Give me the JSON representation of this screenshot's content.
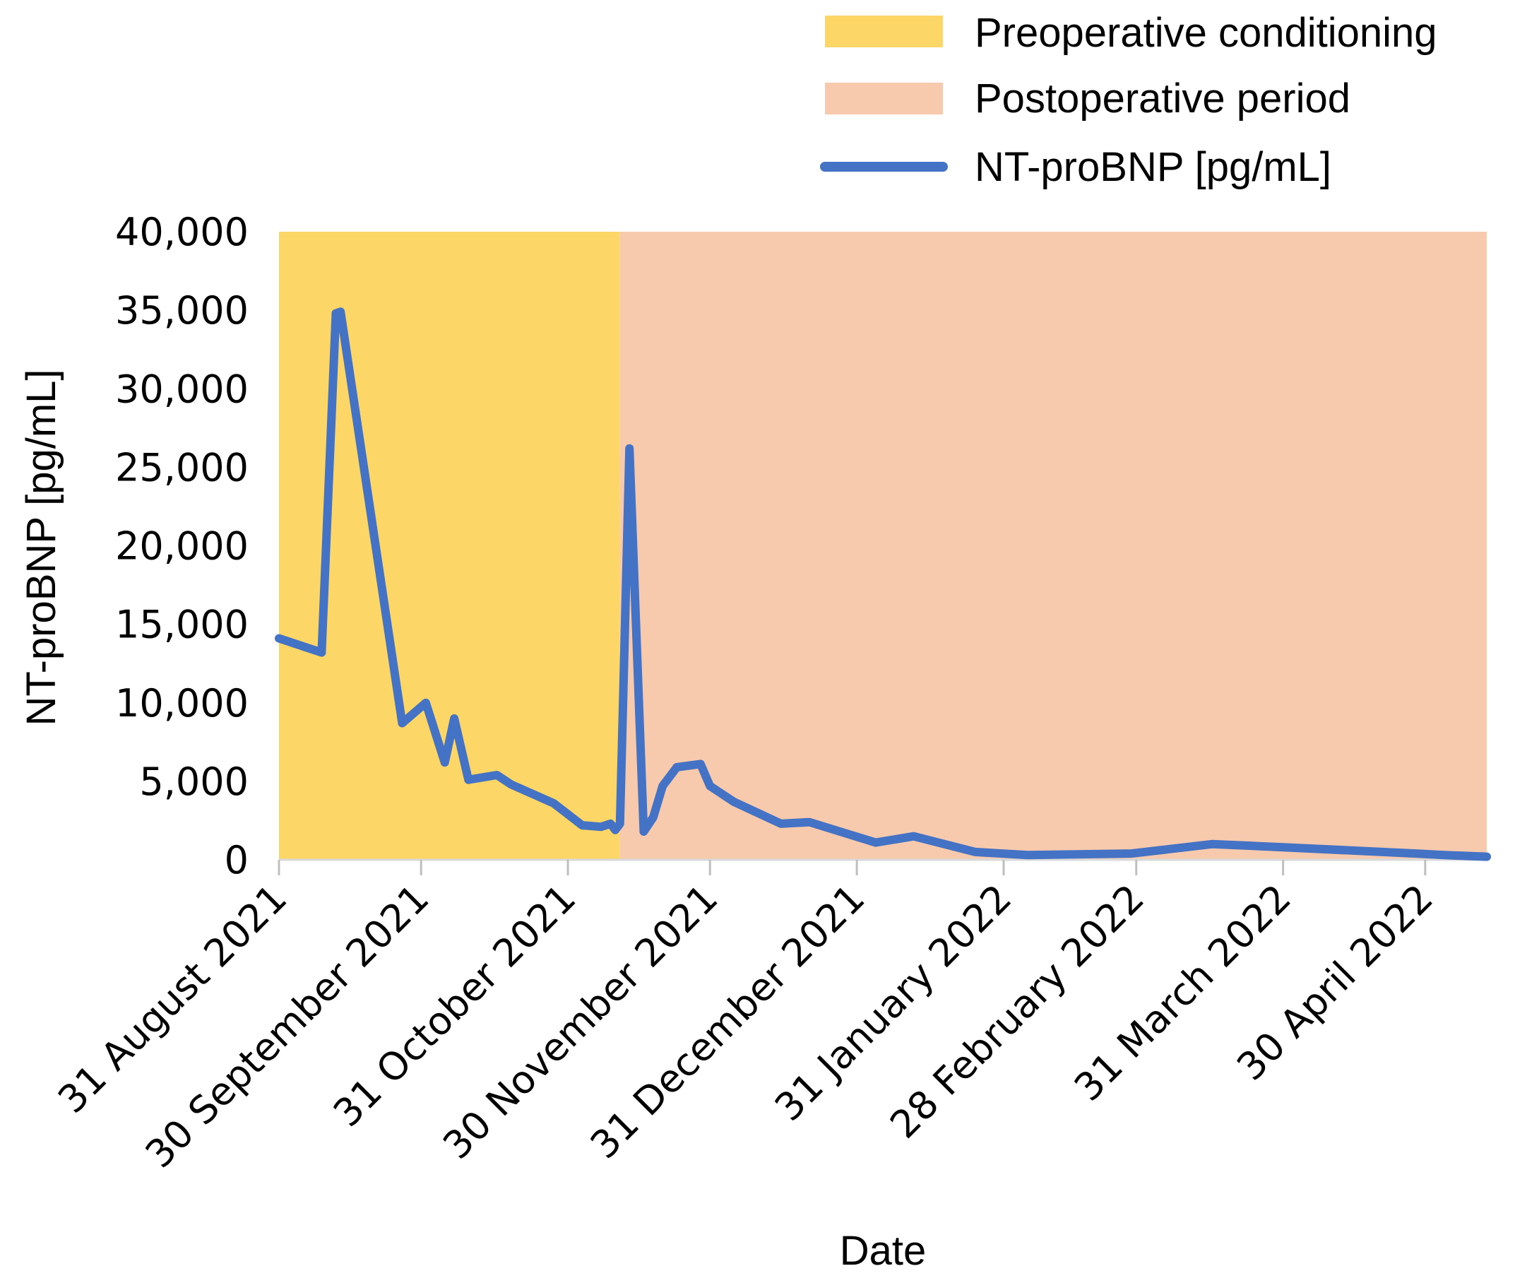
{
  "chart_data": {
    "type": "line",
    "title": "",
    "xlabel": "Date",
    "ylabel": "NT-proBNP [pg/mL]",
    "ylim": [
      0,
      40000
    ],
    "xlim_days": [
      0,
      255
    ],
    "grid": false,
    "legend_position": "top-right",
    "y_ticks": [
      {
        "value": 0,
        "label": "0"
      },
      {
        "value": 5000,
        "label": "5,000"
      },
      {
        "value": 10000,
        "label": "10,000"
      },
      {
        "value": 15000,
        "label": "15,000"
      },
      {
        "value": 20000,
        "label": "20,000"
      },
      {
        "value": 25000,
        "label": "25,000"
      },
      {
        "value": 30000,
        "label": "30,000"
      },
      {
        "value": 35000,
        "label": "35,000"
      },
      {
        "value": 40000,
        "label": "40,000"
      }
    ],
    "x_ticks": [
      {
        "day": 0,
        "label": "31 August 2021"
      },
      {
        "day": 30,
        "label": "30 September 2021"
      },
      {
        "day": 61,
        "label": "31 October 2021"
      },
      {
        "day": 91,
        "label": "30 November 2021"
      },
      {
        "day": 122,
        "label": "31 December 2021"
      },
      {
        "day": 153,
        "label": "31 January 2022"
      },
      {
        "day": 181,
        "label": "28 February 2022"
      },
      {
        "day": 212,
        "label": "31 March 2022"
      },
      {
        "day": 242,
        "label": "30 April 2022"
      }
    ],
    "periods": [
      {
        "name": "Preoperative conditioning",
        "start_day": 0,
        "end_day": 72,
        "color": "#FCD667"
      },
      {
        "name": "Postoperative period",
        "start_day": 72,
        "end_day": 255,
        "color": "#F8CAAD"
      }
    ],
    "series": [
      {
        "name": "NT-proBNP [pg/mL]",
        "color": "#4472C4",
        "points": [
          [
            0,
            14100
          ],
          [
            9,
            13200
          ],
          [
            12,
            34800
          ],
          [
            13,
            34900
          ],
          [
            26,
            8700
          ],
          [
            31,
            10000
          ],
          [
            35,
            6200
          ],
          [
            37,
            9000
          ],
          [
            40,
            5100
          ],
          [
            46,
            5400
          ],
          [
            49,
            4800
          ],
          [
            58,
            3600
          ],
          [
            64,
            2200
          ],
          [
            68,
            2100
          ],
          [
            70,
            2300
          ],
          [
            71,
            1900
          ],
          [
            72,
            2300
          ],
          [
            74,
            26200
          ],
          [
            77,
            1800
          ],
          [
            79,
            2700
          ],
          [
            81,
            4700
          ],
          [
            84,
            5900
          ],
          [
            89,
            6100
          ],
          [
            91,
            4700
          ],
          [
            96,
            3700
          ],
          [
            106,
            2300
          ],
          [
            112,
            2400
          ],
          [
            126,
            1100
          ],
          [
            134,
            1500
          ],
          [
            147,
            500
          ],
          [
            158,
            300
          ],
          [
            180,
            400
          ],
          [
            197,
            1000
          ],
          [
            212,
            800
          ],
          [
            240,
            400
          ],
          [
            246,
            300
          ],
          [
            255,
            200
          ]
        ]
      }
    ]
  }
}
